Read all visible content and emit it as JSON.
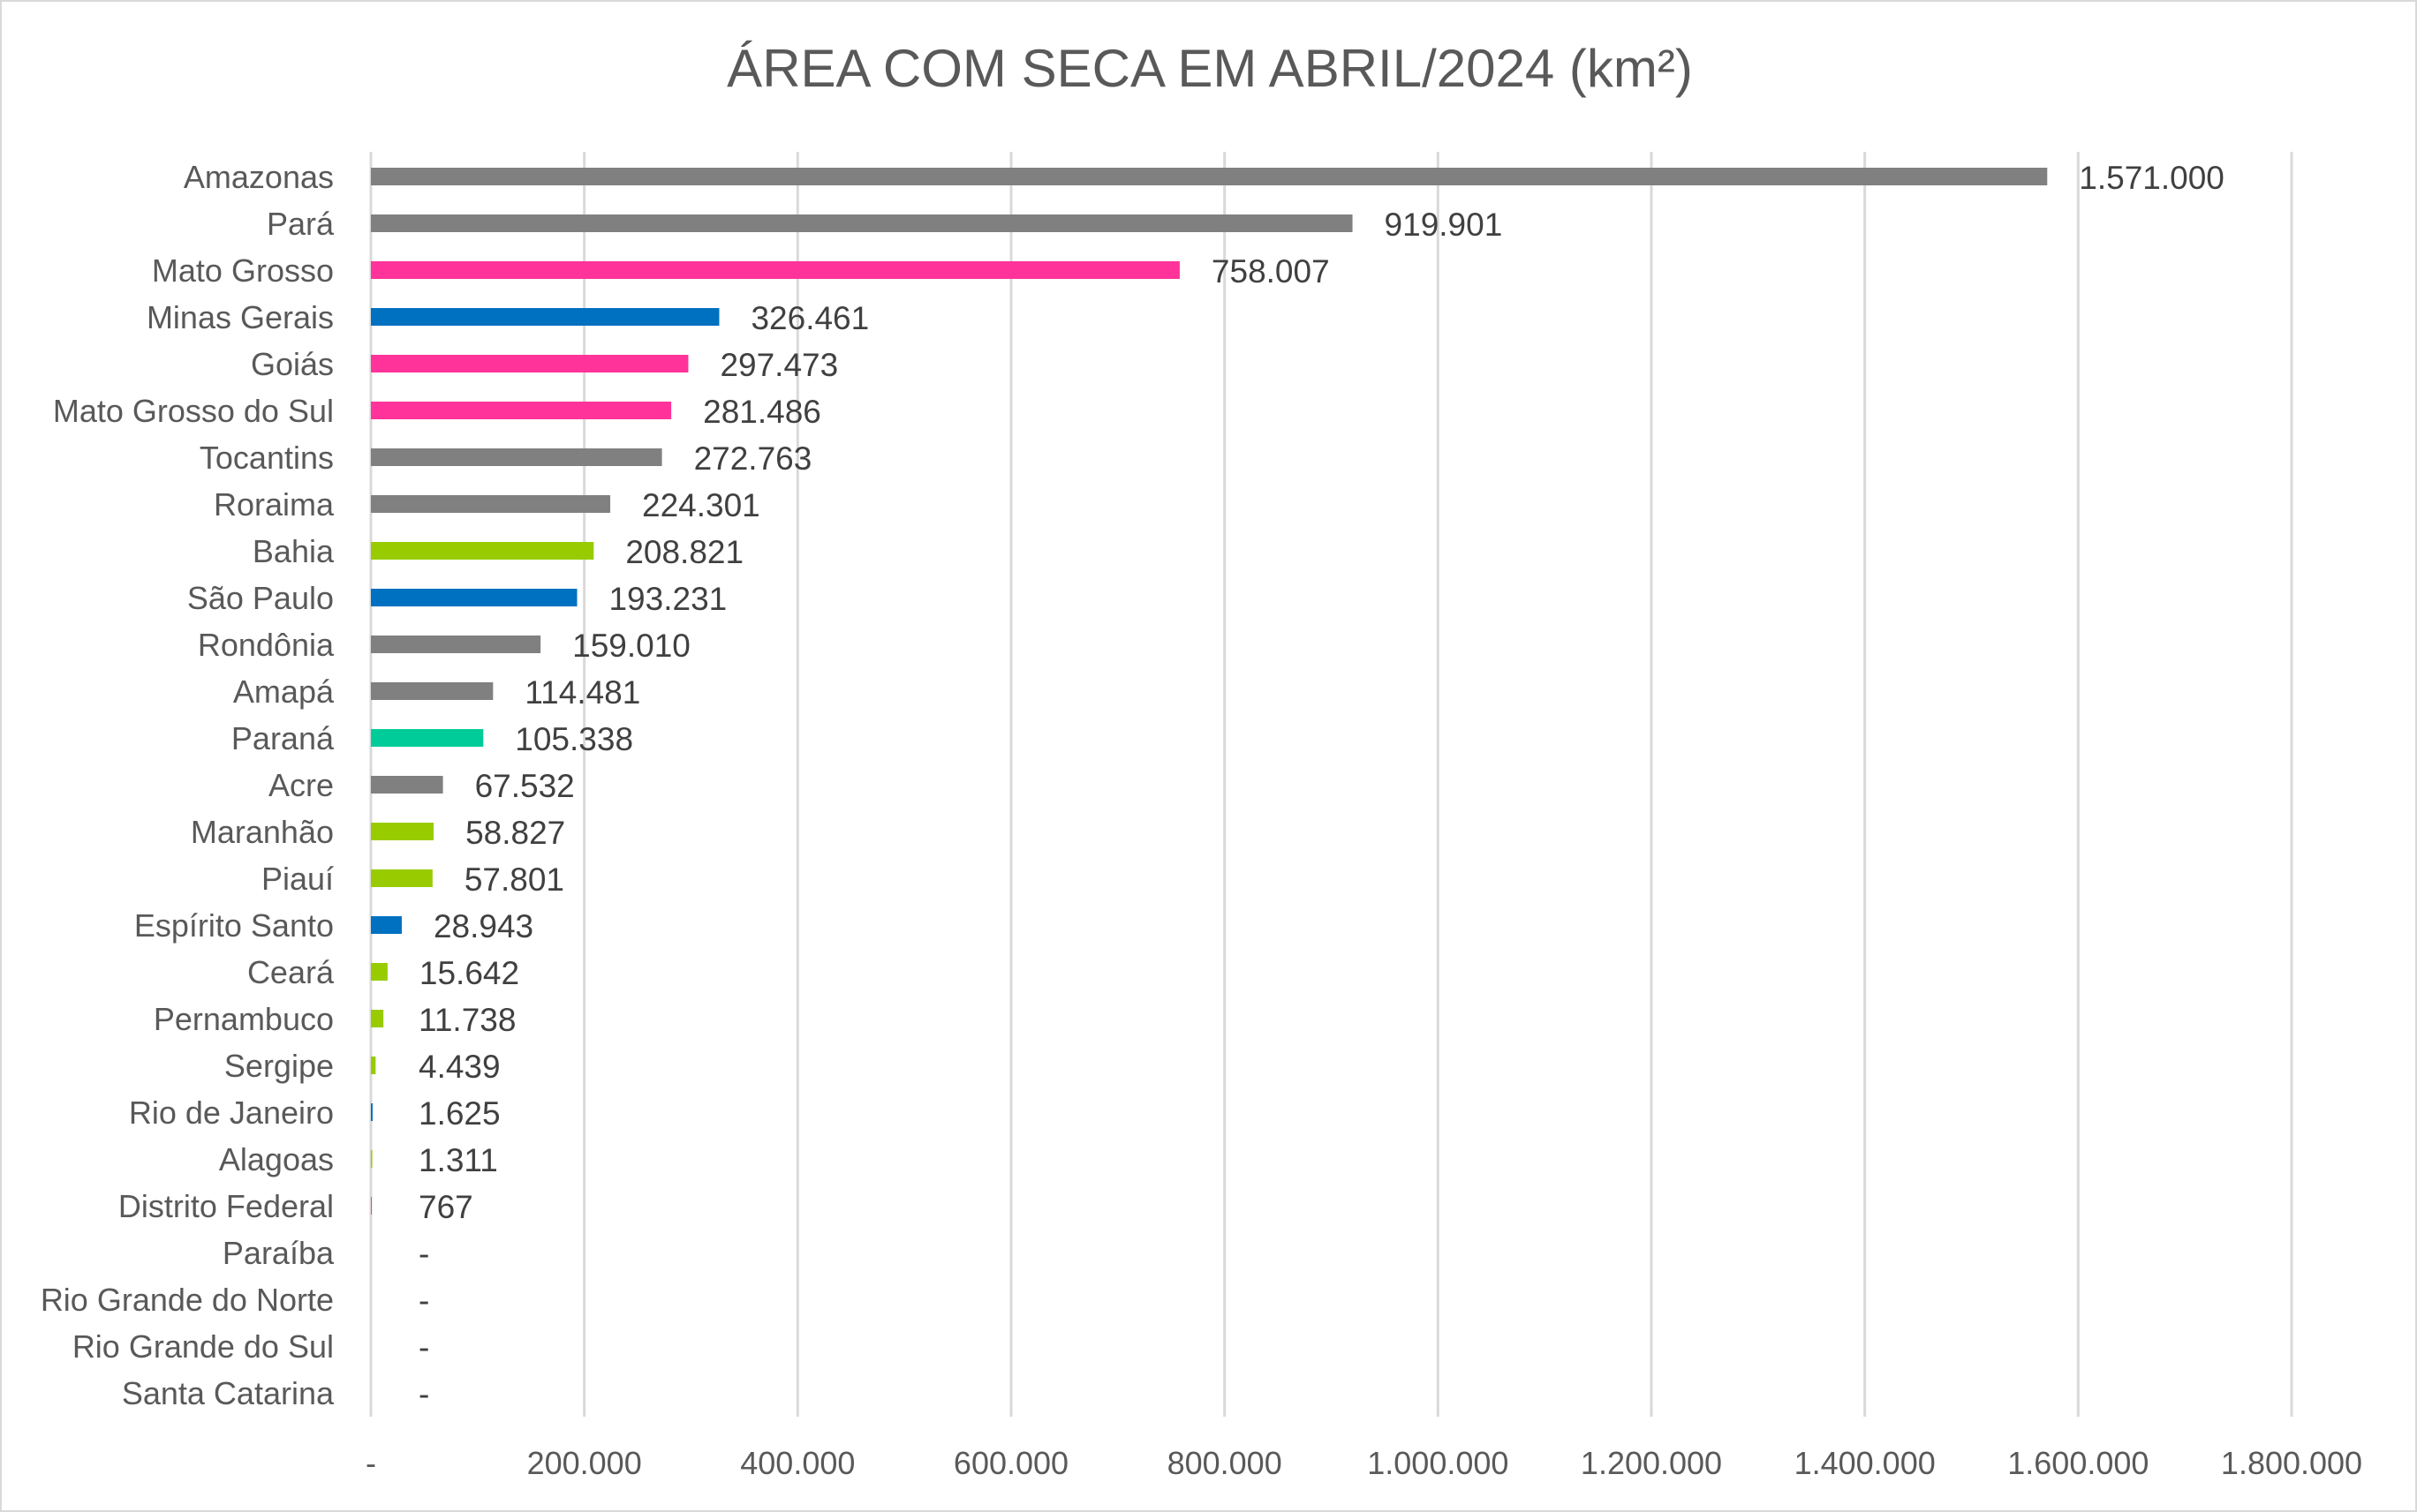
{
  "chart_data": {
    "type": "bar",
    "orientation": "horizontal",
    "title": "ÁREA COM SECA EM ABRIL/2024 (km²)",
    "xlabel": "",
    "ylabel": "",
    "xlim": [
      0,
      1800000
    ],
    "x_ticks": [
      0,
      200000,
      400000,
      600000,
      800000,
      1000000,
      1200000,
      1400000,
      1600000,
      1800000
    ],
    "x_tick_labels": [
      "-",
      "200.000",
      "400.000",
      "600.000",
      "800.000",
      "1.000.000",
      "1.200.000",
      "1.400.000",
      "1.600.000",
      "1.800.000"
    ],
    "grid": "vertical",
    "legend": "none",
    "categories": [
      "Amazonas",
      "Pará",
      "Mato Grosso",
      "Minas Gerais",
      "Goiás",
      "Mato Grosso do Sul",
      "Tocantins",
      "Roraima",
      "Bahia",
      "São Paulo",
      "Rondônia",
      "Amapá",
      "Paraná",
      "Acre",
      "Maranhão",
      "Piauí",
      "Espírito Santo",
      "Ceará",
      "Pernambuco",
      "Sergipe",
      "Rio de Janeiro",
      "Alagoas",
      "Distrito Federal",
      "Paraíba",
      "Rio Grande do Norte",
      "Rio Grande do Sul",
      "Santa Catarina"
    ],
    "values": [
      1571000,
      919901,
      758007,
      326461,
      297473,
      281486,
      272763,
      224301,
      208821,
      193231,
      159010,
      114481,
      105338,
      67532,
      58827,
      57801,
      28943,
      15642,
      11738,
      4439,
      1625,
      1311,
      767,
      0,
      0,
      0,
      0
    ],
    "value_labels": [
      "1.571.000",
      "919.901",
      "758.007",
      "326.461",
      "297.473",
      "281.486",
      "272.763",
      "224.301",
      "208.821",
      "193.231",
      "159.010",
      "114.481",
      "105.338",
      "67.532",
      "58.827",
      "57.801",
      "28.943",
      "15.642",
      "11.738",
      "4.439",
      "1.625",
      "1.311",
      "767",
      "-",
      "-",
      "-",
      "-"
    ],
    "bar_colors": [
      "#808080",
      "#808080",
      "#ff3399",
      "#0070c0",
      "#ff3399",
      "#ff3399",
      "#808080",
      "#808080",
      "#99cc00",
      "#0070c0",
      "#808080",
      "#808080",
      "#00cc99",
      "#808080",
      "#99cc00",
      "#99cc00",
      "#0070c0",
      "#99cc00",
      "#99cc00",
      "#99cc00",
      "#0070c0",
      "#99cc00",
      "#ff3399",
      "#99cc00",
      "#99cc00",
      "#00cc99",
      "#00cc99"
    ],
    "gridline_color": "#d9d9d9",
    "text_color": "#595959"
  }
}
